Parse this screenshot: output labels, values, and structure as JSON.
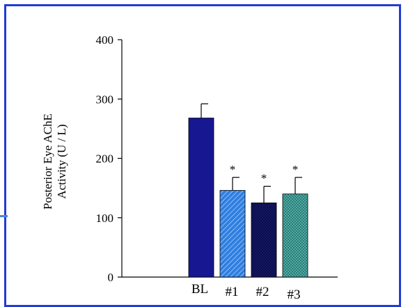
{
  "chart_data": {
    "type": "bar",
    "title": "",
    "xlabel": "",
    "ylabel_lines": [
      "Posterior Eye AChE",
      "Activity (U / L)"
    ],
    "ylim": [
      0,
      400
    ],
    "yticks": [
      0,
      100,
      200,
      300,
      400
    ],
    "grid": false,
    "categories": [
      "BL",
      "#1",
      "#2",
      "#3"
    ],
    "values": [
      268,
      146,
      125,
      140
    ],
    "error_upper": [
      292,
      168,
      153,
      168
    ],
    "significance": [
      "",
      "*",
      "*",
      "*"
    ],
    "colors": {
      "BL": "#171791",
      "#1": "#2f7fe0",
      "#2": "#0b0b4d",
      "#3": "#1f6f6a",
      "frame": "#1f3dd6"
    },
    "patterns": [
      "solid",
      "diagonal-hatch",
      "dense-dots",
      "crosshatch"
    ]
  }
}
